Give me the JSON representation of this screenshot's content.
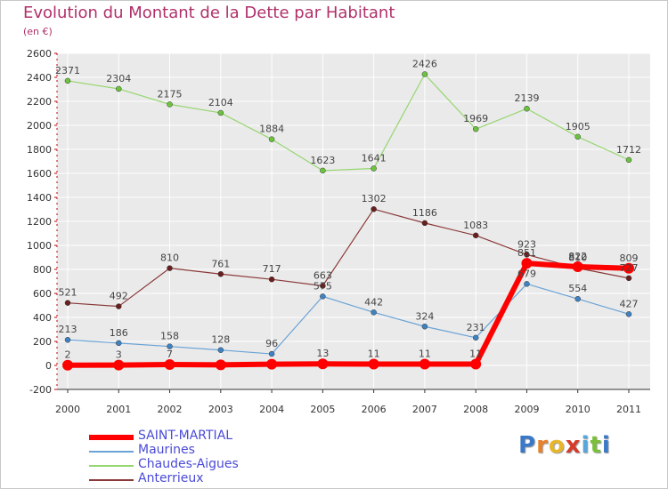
{
  "title": "Evolution du Montant de la Dette par Habitant",
  "unit": "(en €)",
  "logo": {
    "letters": [
      "P",
      "r",
      "o",
      "x",
      "i",
      "t",
      "i"
    ],
    "colors": [
      "#3a78c8",
      "#e8812a",
      "#e8b62a",
      "#d43b2a",
      "#5aa6d8",
      "#7abf3a",
      "#3a78c8"
    ]
  },
  "chart_data": {
    "type": "line",
    "categories": [
      "2000",
      "2001",
      "2002",
      "2003",
      "2004",
      "2005",
      "2006",
      "2007",
      "2008",
      "2009",
      "2010",
      "2011"
    ],
    "ylim": [
      -200,
      2600
    ],
    "yticks": [
      -200,
      0,
      200,
      400,
      600,
      800,
      1000,
      1200,
      1400,
      1600,
      1800,
      2000,
      2200,
      2400,
      2600
    ],
    "grid": true,
    "legend_position": "bottom-left",
    "series": [
      {
        "name": "SAINT-MARTIAL",
        "color": "#ff0000",
        "marker": "#ff0000",
        "label_color": "#444444",
        "width": 6,
        "values": [
          2,
          3,
          7,
          5,
          10,
          13,
          11,
          11,
          11,
          851,
          822,
          809
        ],
        "labels": [
          "2",
          "3",
          "7",
          "",
          "",
          "13",
          "11",
          "11",
          "11",
          "851",
          "822",
          "809"
        ]
      },
      {
        "name": "Maurines",
        "color": "#6ba3d6",
        "marker": "#3f82c2",
        "label_color": "#444444",
        "width": 1.2,
        "values": [
          213,
          186,
          158,
          128,
          96,
          575,
          442,
          324,
          231,
          679,
          554,
          427
        ],
        "labels": [
          "213",
          "186",
          "158",
          "128",
          "96",
          "575",
          "442",
          "324",
          "231",
          "679",
          "554",
          "427"
        ]
      },
      {
        "name": "Chaudes-Aigues",
        "color": "#96d670",
        "marker": "#6cc43c",
        "label_color": "#444444",
        "width": 1.2,
        "values": [
          2371,
          2304,
          2175,
          2104,
          1884,
          1623,
          1641,
          2426,
          1969,
          2139,
          1905,
          1712
        ],
        "labels": [
          "2371",
          "2304",
          "2175",
          "2104",
          "1884",
          "1623",
          "1641",
          "2426",
          "1969",
          "2139",
          "1905",
          "1712"
        ]
      },
      {
        "name": "Anterrieux",
        "color": "#8b3a3a",
        "marker": "#6a1e1e",
        "label_color": "#444444",
        "width": 1.2,
        "values": [
          521,
          492,
          810,
          761,
          717,
          663,
          1302,
          1186,
          1083,
          923,
          810,
          727
        ],
        "labels": [
          "521",
          "492",
          "810",
          "761",
          "717",
          "663",
          "1302",
          "1186",
          "1083",
          "923",
          "810",
          "727"
        ]
      }
    ]
  }
}
